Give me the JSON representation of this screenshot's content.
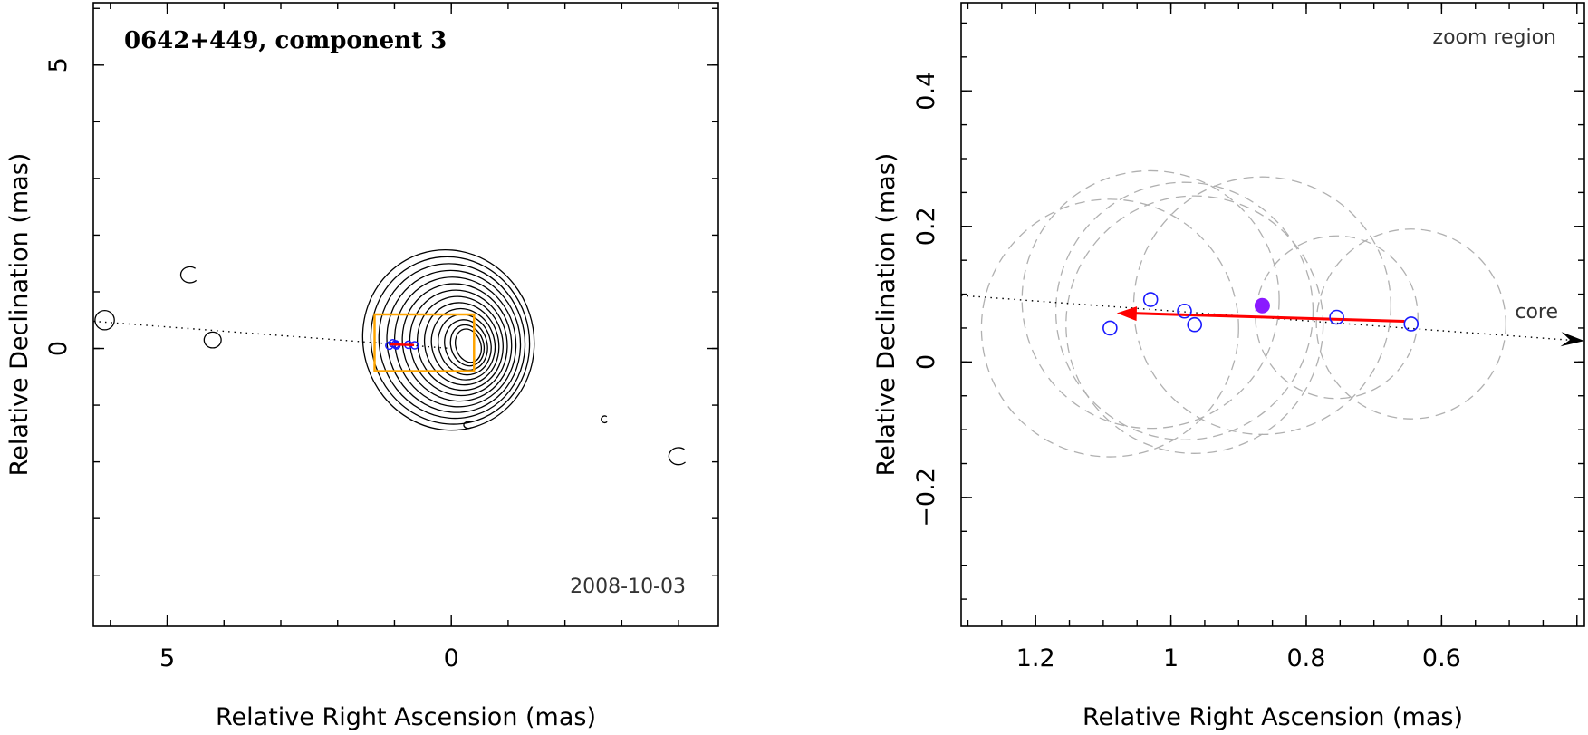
{
  "chart_data": [
    {
      "type": "contour",
      "title": "0642+449, component 3",
      "epoch": "2008-10-03",
      "xlabel": "Relative Right Ascension (mas)",
      "ylabel": "Relative Declination (mas)",
      "xlim": [
        6.3,
        -4.7
      ],
      "ylim": [
        -4.9,
        6.1
      ],
      "xticks": [
        {
          "v": 5,
          "label": "5"
        },
        {
          "v": 0,
          "label": "0"
        }
      ],
      "yticks": [
        {
          "v": 5,
          "label": "5"
        },
        {
          "v": 0,
          "label": "0"
        }
      ],
      "core_contours": {
        "center": [
          -0.3,
          0.05
        ],
        "count": 14,
        "outer_semi_axes": [
          1.5,
          1.6
        ],
        "inner_semi_axes": [
          0.22,
          0.3
        ],
        "outer_shift": [
          0.35,
          0.1
        ]
      },
      "faint_contours": [
        {
          "x": 6.1,
          "y": 0.5,
          "rx": 0.17,
          "ry": 0.17
        },
        {
          "x": 4.2,
          "y": 0.15,
          "rx": 0.15,
          "ry": 0.14
        },
        {
          "x": 4.6,
          "y": 1.3,
          "rx": 0.16,
          "ry": 0.14,
          "arc": true
        },
        {
          "x": -4.0,
          "y": -1.9,
          "rx": 0.17,
          "ry": 0.15,
          "arc": true
        },
        {
          "x": -2.7,
          "y": -1.25,
          "rx": 0.06,
          "ry": 0.06,
          "arc": true
        },
        {
          "x": -0.3,
          "y": -1.35,
          "rx": 0.08,
          "ry": 0.06,
          "arc": true
        }
      ],
      "jet_axis": [
        [
          6.3,
          0.48
        ],
        [
          0.0,
          0.0
        ]
      ],
      "zoom_box": [
        1.35,
        0.6,
        -0.4,
        -0.4
      ]
    },
    {
      "type": "scatter",
      "title": "zoom region",
      "core_label": "core",
      "xlabel": "Relative Right Ascension (mas)",
      "ylabel": "Relative Declination (mas)",
      "xlim": [
        1.31,
        0.389
      ],
      "ylim": [
        -0.39,
        0.53
      ],
      "xticks": [
        {
          "v": 1.2,
          "label": "1.2"
        },
        {
          "v": 1.0,
          "label": "1"
        },
        {
          "v": 0.8,
          "label": "0.8"
        },
        {
          "v": 0.6,
          "label": "0.6"
        }
      ],
      "yticks": [
        {
          "v": 0.4,
          "label": "0.4"
        },
        {
          "v": 0.2,
          "label": "0.2"
        },
        {
          "v": 0.0,
          "label": "0"
        },
        {
          "v": -0.2,
          "label": "−0.2"
        }
      ],
      "points": [
        {
          "x": 1.09,
          "y": 0.05
        },
        {
          "x": 1.03,
          "y": 0.092
        },
        {
          "x": 0.98,
          "y": 0.075
        },
        {
          "x": 0.965,
          "y": 0.055
        },
        {
          "x": 0.755,
          "y": 0.066
        },
        {
          "x": 0.645,
          "y": 0.056
        }
      ],
      "mean_point": {
        "x": 0.865,
        "y": 0.083
      },
      "error_circles": [
        {
          "x": 1.09,
          "y": 0.05,
          "r": 0.19
        },
        {
          "x": 1.03,
          "y": 0.092,
          "r": 0.19
        },
        {
          "x": 0.98,
          "y": 0.075,
          "r": 0.19
        },
        {
          "x": 0.965,
          "y": 0.055,
          "r": 0.19
        },
        {
          "x": 0.865,
          "y": 0.083,
          "r": 0.19
        },
        {
          "x": 0.755,
          "y": 0.066,
          "r": 0.12
        },
        {
          "x": 0.645,
          "y": 0.056,
          "r": 0.14
        }
      ],
      "velocity_arrow": {
        "from": [
          0.655,
          0.06
        ],
        "to": [
          1.08,
          0.072
        ]
      },
      "jet_axis": [
        [
          1.31,
          0.098
        ],
        [
          0.389,
          0.031
        ]
      ],
      "colors": {
        "points": "#1a1aff",
        "mean": "#8a1aff",
        "arrow": "#ff0000",
        "circles": "#b0b0b0",
        "zoom_box": "#ffa500"
      }
    }
  ]
}
